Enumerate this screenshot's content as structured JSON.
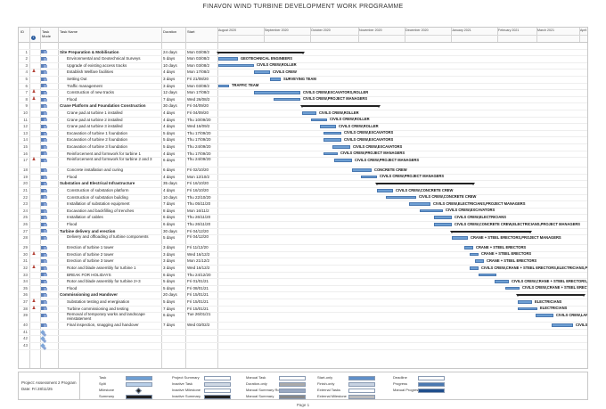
{
  "title": "FINAVON WIND TURBINE DEVELOPMENT WORK PROGRAMME",
  "columns": {
    "id": "ID",
    "indicator": "",
    "mode": "Task Mode",
    "name": "Task Name",
    "duration": "Duration",
    "start": "Start"
  },
  "months": [
    "August 2020",
    "September 2020",
    "October 2020",
    "November 2020",
    "December 2020",
    "January 2021",
    "February 2021",
    "March 2021",
    "April"
  ],
  "tasks": [
    {
      "id": "",
      "ind": "",
      "name": "",
      "dur": "",
      "start": "",
      "bold": false
    },
    {
      "id": "1",
      "ind": "",
      "name": "Site Preparation & Mobilisation",
      "dur": "24 days",
      "start": "Mon 03/08/2",
      "bold": true,
      "sum": [
        0,
        95
      ]
    },
    {
      "id": "2",
      "ind": "",
      "name": "Environmental and Geotechnical Surveys",
      "dur": "5 days",
      "start": "Mon 03/08/2",
      "bold": false,
      "bar": [
        0,
        22
      ],
      "res": "GEOTECHNICAL ENGINEERS"
    },
    {
      "id": "3",
      "ind": "",
      "name": "Upgrade of existing access tracks",
      "dur": "10 days",
      "start": "Mon 03/08/2",
      "bold": false,
      "bar": [
        0,
        40
      ],
      "res": "CIVILS CREW,ROLLER"
    },
    {
      "id": "4",
      "ind": "♟",
      "name": "Establish Welfare facilities",
      "dur": "4 days",
      "start": "Mon 17/08/2",
      "bold": false,
      "bar": [
        40,
        58
      ],
      "res": "CIVILS CREW"
    },
    {
      "id": "5",
      "ind": "",
      "name": "Setting Out",
      "dur": "3 days",
      "start": "Fri 21/08/20",
      "bold": false,
      "bar": [
        58,
        70
      ],
      "res": "SURVEYING TEAM"
    },
    {
      "id": "6",
      "ind": "",
      "name": "Traffic management",
      "dur": "3 days",
      "start": "Mon 03/08/2",
      "bold": false,
      "bar": [
        0,
        12
      ],
      "res": "TRAFFIC TEAM"
    },
    {
      "id": "7",
      "ind": "♟",
      "name": "Construction of new tracks",
      "dur": "12 days",
      "start": "Mon 17/08/2",
      "bold": false,
      "bar": [
        40,
        92
      ],
      "res": "CIVILS CREW,EXCAVATORS,ROLLER"
    },
    {
      "id": "8",
      "ind": "♟",
      "name": "Flood",
      "dur": "7 days",
      "start": "Wed 26/08/2",
      "bold": false,
      "bar": [
        62,
        92
      ],
      "res": "CIVILS CREW,PROJECT MANAGERS"
    },
    {
      "id": "9",
      "ind": "",
      "name": "Crane Platform and Foundation Construction",
      "dur": "30 days",
      "start": "Fri 04/09/20",
      "bold": true,
      "sum": [
        94,
        180
      ]
    },
    {
      "id": "10",
      "ind": "",
      "name": "Crane pad at turbine 1 installed",
      "dur": "4 days",
      "start": "Fri 04/09/20",
      "bold": false,
      "bar": [
        94,
        110
      ],
      "res": "CIVILS CREW,ROLLER"
    },
    {
      "id": "11",
      "ind": "",
      "name": "Crane pad at turbine 2 installed",
      "dur": "4 days",
      "start": "Thu 10/09/20",
      "bold": false,
      "bar": [
        104,
        122
      ],
      "res": "CIVILS CREW,ROLLER"
    },
    {
      "id": "12",
      "ind": "",
      "name": "Crane pad at turbine 3 installed",
      "dur": "4 days",
      "start": "Wed 16/09/2",
      "bold": false,
      "bar": [
        114,
        132
      ],
      "res": "CIVILS CREW,ROLLER"
    },
    {
      "id": "13",
      "ind": "",
      "name": "Excavation of turbine 1 foundation",
      "dur": "5 days",
      "start": "Thu 17/09/20",
      "bold": false,
      "bar": [
        118,
        138
      ],
      "res": "CIVILS CREW,EXCAVATORS"
    },
    {
      "id": "14",
      "ind": "",
      "name": "Excavation of turbine 2 foundation",
      "dur": "5 days",
      "start": "Thu 17/09/20",
      "bold": false,
      "bar": [
        118,
        138
      ],
      "res": "CIVILS CREW,EXCAVATORS"
    },
    {
      "id": "15",
      "ind": "",
      "name": "Excavation of turbine 3 foundation",
      "dur": "5 days",
      "start": "Thu 24/09/20",
      "bold": false,
      "bar": [
        128,
        148
      ],
      "res": "CIVILS CREW,EXCAVATORS"
    },
    {
      "id": "16",
      "ind": "",
      "name": "Reinforcement and formwork for turbine 1",
      "dur": "4 days",
      "start": "Thu 17/09/20",
      "bold": false,
      "bar": [
        118,
        134
      ],
      "res": "CIVILS CREW,PROJECT MANAGERS"
    },
    {
      "id": "17",
      "ind": "♟",
      "name": "Reinforcement and formwork for turbine 2 and 3",
      "dur": "6 days",
      "start": "Thu 24/09/20",
      "bold": false,
      "bar": [
        130,
        150
      ],
      "res": "CIVILS CREW,PROJECT MANAGERS",
      "tall": true
    },
    {
      "id": "18",
      "ind": "",
      "name": "Concrete installation and curing",
      "dur": "6 days",
      "start": "Fri 02/10/20",
      "bold": false,
      "bar": [
        150,
        172
      ],
      "res": "CONCRETE CREW"
    },
    {
      "id": "19",
      "ind": "",
      "name": "Flood",
      "dur": "4 days",
      "start": "Mon 12/10/2",
      "bold": false,
      "bar": [
        160,
        178
      ],
      "res": "CIVILS CREW,PROJECT MANAGERS"
    },
    {
      "id": "20",
      "ind": "",
      "name": "Substation and Electrical Infrastructure",
      "dur": "35 days",
      "start": "Fri 16/10/20",
      "bold": true,
      "sum": [
        178,
        286
      ]
    },
    {
      "id": "21",
      "ind": "",
      "name": "Construction of substation platform",
      "dur": "4 days",
      "start": "Fri 16/10/20",
      "bold": false,
      "bar": [
        178,
        196
      ],
      "res": "CIVILS CREW,CONCRETE CREW"
    },
    {
      "id": "22",
      "ind": "",
      "name": "Construction of substation building",
      "dur": "10 days",
      "start": "Thu 22/10/20",
      "bold": false,
      "bar": [
        188,
        222
      ],
      "res": "CIVILS CREW,CONCRETE CREW"
    },
    {
      "id": "23",
      "ind": "",
      "name": "Installation of substation equipment",
      "dur": "7 days",
      "start": "Thu 05/11/20",
      "bold": false,
      "bar": [
        214,
        238
      ],
      "res": "CIVILS CREW,ELECTRICIANS,PROJECT MANAGERS"
    },
    {
      "id": "24",
      "ind": "",
      "name": "Excavation and backfilling of trenches",
      "dur": "8 days",
      "start": "Mon 16/11/2",
      "bold": false,
      "bar": [
        226,
        252
      ],
      "res": "CIVILS CREW,EXCAVATORS"
    },
    {
      "id": "25",
      "ind": "",
      "name": "Installation of cables",
      "dur": "6 days",
      "start": "Thu 26/11/20",
      "bold": false,
      "bar": [
        242,
        262
      ],
      "res": "CIVILS CREW,ELECTRICIANS"
    },
    {
      "id": "26",
      "ind": "",
      "name": "Flood",
      "dur": "6 days",
      "start": "Thu 26/11/20",
      "bold": false,
      "bar": [
        242,
        262
      ],
      "res": "CIVILS CREW,CONCRETE CREW,ELECTRICIANS,PROJECT MANAGERS"
    },
    {
      "id": "27",
      "ind": "",
      "name": "Turbine delivery and erection",
      "dur": "30 days",
      "start": "Fri 04/12/20",
      "bold": true,
      "sum": [
        262,
        350
      ]
    },
    {
      "id": "28",
      "ind": "",
      "name": "Delivery and offloading of turbine components",
      "dur": "5 days",
      "start": "Fri 04/12/20",
      "bold": false,
      "bar": [
        262,
        280
      ],
      "res": "CRANE + STEEL ERECTORS,PROJECT MANAGERS",
      "tall": true
    },
    {
      "id": "29",
      "ind": "",
      "name": "Erection of turbine 1 tower",
      "dur": "3 days",
      "start": "Fri 11/12/20",
      "bold": false,
      "bar": [
        276,
        286
      ],
      "res": "CRANE + STEEL ERECTORS"
    },
    {
      "id": "30",
      "ind": "♟",
      "name": "Erection of turbine 2 tower",
      "dur": "3 days",
      "start": "Wed 16/12/2",
      "bold": false,
      "bar": [
        282,
        292
      ],
      "res": "CRANE + STEEL ERECTORS"
    },
    {
      "id": "31",
      "ind": "",
      "name": "Erection of turbine 3 tower",
      "dur": "3 days",
      "start": "Mon 21/12/2",
      "bold": false,
      "bar": [
        288,
        298
      ],
      "res": "CRANE + STEEL ERECTORS"
    },
    {
      "id": "32",
      "ind": "♟",
      "name": "Rotor and blade assembly for turbine 1",
      "dur": "3 days",
      "start": "Wed 16/12/2",
      "bold": false,
      "bar": [
        282,
        292
      ],
      "res": "CIVILS CREW,CRANE + STEEL ERECTORS,ELECTRICIANS,PROJECT MANAGERS"
    },
    {
      "id": "33",
      "ind": "",
      "name": "BREAK FOR HOLIDAYS",
      "dur": "6 days",
      "start": "Thu 24/12/20",
      "bold": false,
      "bar": [
        292,
        312
      ]
    },
    {
      "id": "34",
      "ind": "",
      "name": "Rotor and blade assembly for turbine 2+3",
      "dur": "5 days",
      "start": "Fri 01/01/21",
      "bold": false,
      "bar": [
        310,
        326
      ],
      "res": "CIVILS CREW,CRANE + STEEL ERECTORS,ELECTRICIANS"
    },
    {
      "id": "35",
      "ind": "",
      "name": "Flood",
      "dur": "5 days",
      "start": "Fri 08/01/21",
      "bold": false,
      "bar": [
        322,
        338
      ],
      "res": "CIVILS CREW,CRANE + STEEL ERECTORS,ELECTRICIANS,PROJ"
    },
    {
      "id": "36",
      "ind": "",
      "name": "Commissioning and Handover",
      "dur": "20 days",
      "start": "Fri 15/01/21",
      "bold": true,
      "sum": [
        336,
        410
      ]
    },
    {
      "id": "37",
      "ind": "♟",
      "name": "Substation testing and energisation",
      "dur": "5 days",
      "start": "Fri 15/01/21",
      "bold": false,
      "bar": [
        336,
        352
      ],
      "res": "ELECTRICIANS"
    },
    {
      "id": "38",
      "ind": "♟",
      "name": "Turbine commissioning and testing",
      "dur": "7 days",
      "start": "Fri 15/01/21",
      "bold": false,
      "bar": [
        336,
        358
      ],
      "res": "ELECTRICIANS"
    },
    {
      "id": "39",
      "ind": "",
      "name": "Removal of temporary works and landscape reinstatement",
      "dur": "6 days",
      "start": "Tue 26/01/21",
      "bold": false,
      "bar": [
        356,
        376
      ],
      "res": "CIVILS CREW,LANDSCAPING,TRAFFIC TEAM",
      "tall": true
    },
    {
      "id": "40",
      "ind": "",
      "name": "Final inspection, snagging and handover",
      "dur": "7 days",
      "start": "Wed 03/02/2",
      "bold": false,
      "bar": [
        374,
        398
      ],
      "res": "CIVILS CREW,ELECTRICIANS,PROJECT M"
    },
    {
      "id": "41",
      "ind": "",
      "name": "",
      "dur": "",
      "start": "",
      "bold": false
    },
    {
      "id": "42",
      "ind": "",
      "name": "",
      "dur": "",
      "start": "",
      "bold": false
    },
    {
      "id": "43",
      "ind": "",
      "name": "",
      "dur": "",
      "start": "",
      "bold": false
    }
  ],
  "legend": {
    "project": "Project: Assessment 2 Program",
    "date": "Date: Fri 28/11/25",
    "items": [
      [
        "Task",
        "Project Summary",
        "Manual Task",
        "Start-only",
        "Deadline"
      ],
      [
        "Split",
        "Inactive Task",
        "Duration-only",
        "Finish-only",
        "Progress"
      ],
      [
        "Milestone",
        "Inactive Milestone",
        "Manual Summary Rollup",
        "External Tasks",
        "Manual Progress"
      ],
      [
        "Summary",
        "Inactive Summary",
        "Manual Summary",
        "External Milestone",
        ""
      ]
    ]
  },
  "footer": "Page 1"
}
